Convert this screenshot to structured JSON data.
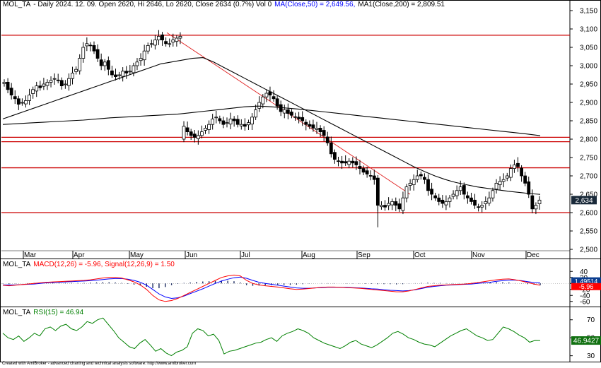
{
  "header": {
    "symbol": "MOL_TA",
    "info": "- Daily 2024. 12. 09. Open 2620, Hi 2646, Lo 2620, Close 2634 (0.7%) Vol 0",
    "ma50": "MA(Close,50) = 2,649.56,",
    "ma200": "MA1(Close,200) = 2,809.51"
  },
  "credit": "Created with AmiBroker - advanced charting and technical analysis software. http://www.amibroker.com",
  "chart_data": [
    {
      "type": "candlestick",
      "ylim": [
        2500,
        3150
      ],
      "y_ticks": [
        "2,500",
        "2,550",
        "2,600",
        "2,650",
        "2,700",
        "2,750",
        "2,800",
        "2,850",
        "2,900",
        "2,950",
        "3,000",
        "3,050",
        "3,100",
        "3,150"
      ],
      "months": [
        "Mar",
        "Apr",
        "May",
        "Jun",
        "Jul",
        "Aug",
        "Sep",
        "Oct",
        "Nov",
        "Dec"
      ],
      "last_price_label": "2,634",
      "horizontal_levels": [
        3083,
        2805,
        2793,
        2722,
        2600
      ],
      "trendline": {
        "from": [
          1,
          3090
        ],
        "to": [
          7,
          2650
        ]
      },
      "close": [
        2955,
        2935,
        2920,
        2910,
        2895,
        2900,
        2905,
        2920,
        2935,
        2945,
        2940,
        2950,
        2955,
        2960,
        2965,
        2960,
        2945,
        2950,
        2965,
        2980,
        2990,
        3020,
        3050,
        3060,
        3055,
        3040,
        3020,
        3000,
        3010,
        2990,
        2975,
        2970,
        2975,
        2985,
        2980,
        2985,
        3000,
        3010,
        3020,
        3040,
        3055,
        3060,
        3070,
        3080,
        3070,
        3060,
        3060,
        3070,
        3075,
        3080,
        2835,
        2820,
        2810,
        2805,
        2810,
        2820,
        2830,
        2840,
        2855,
        2860,
        2850,
        2840,
        2845,
        2855,
        2850,
        2840,
        2840,
        2835,
        2845,
        2860,
        2880,
        2900,
        2915,
        2925,
        2920,
        2910,
        2890,
        2875,
        2880,
        2870,
        2865,
        2860,
        2855,
        2850,
        2840,
        2835,
        2830,
        2830,
        2820,
        2810,
        2790,
        2760,
        2745,
        2740,
        2735,
        2735,
        2740,
        2735,
        2730,
        2720,
        2710,
        2705,
        2700,
        2690,
        2620,
        2620,
        2615,
        2625,
        2630,
        2620,
        2610,
        2640,
        2670,
        2680,
        2690,
        2700,
        2700,
        2690,
        2660,
        2650,
        2640,
        2630,
        2625,
        2630,
        2640,
        2650,
        2660,
        2670,
        2650,
        2640,
        2630,
        2620,
        2615,
        2620,
        2630,
        2640,
        2660,
        2680,
        2685,
        2690,
        2700,
        2720,
        2730,
        2725,
        2700,
        2680,
        2650,
        2610,
        2620,
        2634
      ],
      "ma50": [
        2855,
        2865,
        2875,
        2885,
        2895,
        2905,
        2915,
        2925,
        2935,
        2945,
        2955,
        2965,
        2975,
        2985,
        2995,
        3005,
        3010,
        3015,
        3020,
        3022,
        3010,
        2995,
        2980,
        2965,
        2950,
        2935,
        2920,
        2905,
        2890,
        2875,
        2860,
        2845,
        2830,
        2815,
        2800,
        2785,
        2770,
        2755,
        2740,
        2725,
        2712,
        2700,
        2690,
        2682,
        2676,
        2670,
        2666,
        2662,
        2658,
        2655,
        2652,
        2649.56
      ],
      "ma200": [
        2840,
        2842,
        2844,
        2846,
        2848,
        2850,
        2852,
        2855,
        2858,
        2860,
        2862,
        2864,
        2866,
        2868,
        2872,
        2876,
        2880,
        2884,
        2888,
        2890,
        2888,
        2885,
        2882,
        2878,
        2874,
        2870,
        2866,
        2862,
        2858,
        2854,
        2850,
        2846,
        2842,
        2838,
        2834,
        2830,
        2826,
        2822,
        2818,
        2814,
        2809.51
      ]
    },
    {
      "type": "line",
      "title": "MACD(12,26) = -5.96, Signal(12,26,9) = 1.50",
      "ylim": [
        -70,
        50
      ],
      "y_ticks": [
        40,
        20,
        0,
        -20,
        -40,
        -60
      ],
      "value_labels": [
        "1.49514",
        "-5.96"
      ],
      "macd": [
        -6,
        -8,
        -6,
        -4,
        -2,
        0,
        2,
        4,
        5,
        6,
        7,
        8,
        9,
        10,
        12,
        15,
        18,
        20,
        20,
        18,
        12,
        5,
        -5,
        -20,
        -40,
        -55,
        -60,
        -57,
        -50,
        -40,
        -30,
        -20,
        -10,
        0,
        10,
        20,
        25,
        28,
        25,
        10,
        0,
        -5,
        -8,
        -10,
        -12,
        -15,
        -18,
        -20,
        -19,
        -17,
        -15,
        -13,
        -12,
        -12,
        -13,
        -14,
        -15,
        -16,
        -18,
        -20,
        -22,
        -24,
        -26,
        -28,
        -28,
        -25,
        -20,
        -15,
        -10,
        -8,
        -6,
        -5,
        -4,
        -3,
        -2,
        0,
        3,
        6,
        9,
        12,
        14,
        15,
        12,
        8,
        3,
        -2,
        -5.96
      ],
      "signal": [
        -5,
        -5,
        -5,
        -4,
        -3,
        -2,
        0,
        2,
        3,
        4,
        5,
        6,
        7,
        8,
        9,
        11,
        13,
        15,
        16,
        16,
        14,
        10,
        4,
        -6,
        -20,
        -35,
        -45,
        -50,
        -48,
        -42,
        -34,
        -26,
        -18,
        -9,
        0,
        8,
        14,
        19,
        21,
        17,
        10,
        4,
        0,
        -3,
        -6,
        -9,
        -12,
        -15,
        -16,
        -16,
        -15,
        -14,
        -13,
        -13,
        -13,
        -13,
        -14,
        -15,
        -16,
        -18,
        -19,
        -21,
        -23,
        -24,
        -25,
        -24,
        -21,
        -17,
        -13,
        -10,
        -8,
        -6,
        -5,
        -4,
        -3,
        -2,
        0,
        2,
        4,
        7,
        9,
        11,
        11,
        9,
        6,
        3,
        1.5
      ]
    },
    {
      "type": "line",
      "title": "RSI(15) = 46.94",
      "ylim": [
        25,
        80
      ],
      "y_ticks": [
        70,
        50,
        30
      ],
      "value_label": "46.9427",
      "rsi": [
        55,
        50,
        48,
        52,
        46,
        50,
        55,
        52,
        60,
        62,
        58,
        63,
        65,
        60,
        58,
        62,
        68,
        66,
        70,
        72,
        65,
        58,
        50,
        45,
        40,
        38,
        44,
        48,
        42,
        35,
        38,
        33,
        30,
        34,
        36,
        40,
        55,
        60,
        58,
        52,
        54,
        47,
        32,
        35,
        36,
        38,
        40,
        42,
        44,
        45,
        48,
        50,
        46,
        52,
        55,
        57,
        60,
        58,
        55,
        50,
        47,
        44,
        42,
        40,
        38,
        41,
        45,
        47,
        43,
        41,
        39,
        42,
        46,
        50,
        55,
        57,
        54,
        50,
        48,
        45,
        43,
        42,
        40,
        44,
        48,
        52,
        55,
        58,
        60,
        56,
        52,
        50,
        47,
        48,
        55,
        62,
        60,
        57,
        53,
        50,
        45,
        47,
        46.94
      ]
    }
  ],
  "colors": {
    "candle_up": "#ffffff",
    "candle_down": "#000000",
    "ma_line": "#000000",
    "level_line": "#cc0000",
    "trend_line": "#e02020",
    "macd_line": "#ff0000",
    "signal_line": "#0000ff",
    "rsi_line": "#008000",
    "price_tag_bg": "#1a2a3a",
    "macd_tag_bg": "#0b3d8f",
    "signal_tag_bg": "#ff0000",
    "rsi_tag_bg": "#107010"
  }
}
